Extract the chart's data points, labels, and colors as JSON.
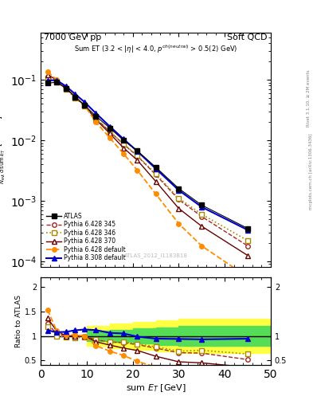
{
  "title_left": "7000 GeV pp",
  "title_right": "Soft QCD",
  "watermark": "ATLAS_2012_I1183818",
  "ylabel_ratio": "Ratio to ATLAS",
  "xlabel": "sum $E_T$ [GeV]",
  "atlas_x": [
    1.5,
    3.5,
    5.5,
    7.5,
    9.5,
    12.0,
    15.0,
    18.0,
    21.0,
    25.0,
    30.0,
    35.0,
    45.0
  ],
  "atlas_y": [
    0.088,
    0.091,
    0.072,
    0.052,
    0.038,
    0.025,
    0.016,
    0.01,
    0.0067,
    0.0036,
    0.0016,
    0.00085,
    0.00035
  ],
  "py345_x": [
    1.5,
    3.5,
    5.5,
    7.5,
    9.5,
    12.0,
    15.0,
    18.0,
    21.0,
    25.0,
    30.0,
    35.0,
    45.0
  ],
  "py345_y": [
    0.11,
    0.095,
    0.072,
    0.052,
    0.038,
    0.023,
    0.014,
    0.0086,
    0.0055,
    0.0027,
    0.00105,
    0.00055,
    0.00018
  ],
  "py346_x": [
    1.5,
    3.5,
    5.5,
    7.5,
    9.5,
    12.0,
    15.0,
    18.0,
    21.0,
    25.0,
    30.0,
    35.0,
    45.0
  ],
  "py346_y": [
    0.105,
    0.091,
    0.07,
    0.05,
    0.037,
    0.023,
    0.014,
    0.0087,
    0.0056,
    0.0028,
    0.0011,
    0.0006,
    0.00022
  ],
  "py370_x": [
    1.5,
    3.5,
    5.5,
    7.5,
    9.5,
    12.0,
    15.0,
    18.0,
    21.0,
    25.0,
    30.0,
    35.0,
    45.0
  ],
  "py370_y": [
    0.12,
    0.1,
    0.072,
    0.052,
    0.038,
    0.022,
    0.013,
    0.0075,
    0.0047,
    0.0021,
    0.00075,
    0.00038,
    0.000125
  ],
  "pydef_x": [
    1.5,
    3.5,
    5.5,
    7.5,
    9.5,
    12.0,
    15.0,
    18.0,
    21.0,
    25.0,
    30.0,
    35.0,
    45.0
  ],
  "pydef_y": [
    0.135,
    0.1,
    0.074,
    0.053,
    0.038,
    0.02,
    0.011,
    0.006,
    0.0032,
    0.0013,
    0.00042,
    0.00018,
    5.5e-05
  ],
  "py8def_x": [
    1.5,
    3.5,
    5.5,
    7.5,
    9.5,
    12.0,
    15.0,
    18.0,
    21.0,
    25.0,
    30.0,
    35.0,
    45.0
  ],
  "py8def_y": [
    0.098,
    0.098,
    0.078,
    0.058,
    0.043,
    0.028,
    0.017,
    0.0105,
    0.0066,
    0.0034,
    0.0015,
    0.00079,
    0.00033
  ],
  "color_atlas": "#000000",
  "color_py345": "#aa2222",
  "color_py346": "#aa8800",
  "color_py370": "#660000",
  "color_pydef": "#ff8c00",
  "color_py8def": "#0000cc",
  "ylim_main": [
    8e-05,
    0.6
  ],
  "ylim_ratio": [
    0.4,
    2.2
  ],
  "xlim": [
    0,
    50
  ],
  "band_yellow_edges": [
    10,
    15,
    20,
    25,
    30,
    50
  ],
  "band_yellow_low": [
    0.8,
    0.75,
    0.72,
    0.68,
    0.65,
    0.65
  ],
  "band_yellow_high": [
    1.2,
    1.25,
    1.28,
    1.32,
    1.35,
    1.35
  ],
  "band_green_edges": [
    10,
    15,
    20,
    25,
    30,
    50
  ],
  "band_green_low": [
    0.9,
    0.87,
    0.84,
    0.82,
    0.8,
    0.8
  ],
  "band_green_high": [
    1.1,
    1.13,
    1.16,
    1.18,
    1.2,
    1.2
  ]
}
